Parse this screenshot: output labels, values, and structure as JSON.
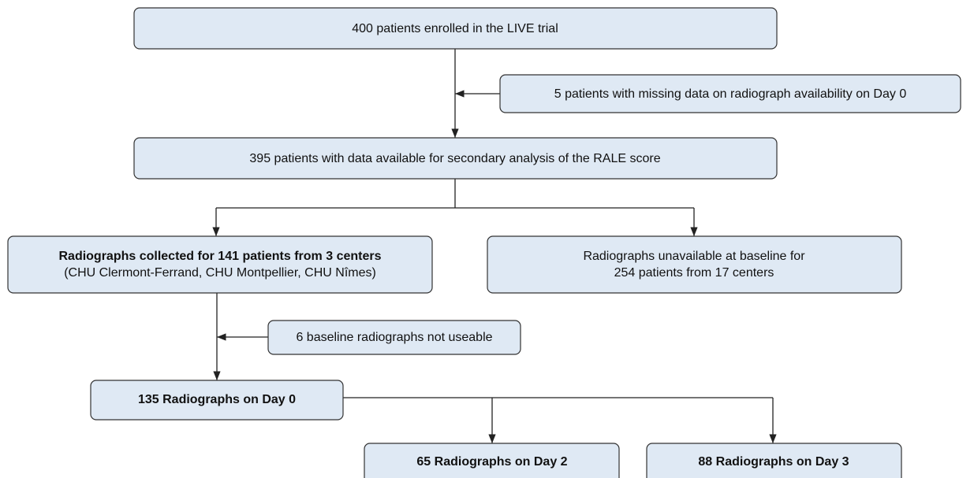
{
  "nodes": [
    {
      "lines": [
        "400 patients enrolled in the LIVE trial"
      ]
    },
    {
      "lines": [
        "5 patients with missing data on radiograph availability on Day 0"
      ]
    },
    {
      "lines": [
        "395 patients with data available for secondary analysis of the RALE score"
      ]
    },
    {
      "lines": [
        "Radiographs collected for 141 patients from 3 centers",
        "(CHU Clermont-Ferrand, CHU Montpellier, CHU Nîmes)"
      ]
    },
    {
      "lines": [
        "Radiographs unavailable at baseline for",
        "254 patients from 17 centers"
      ]
    },
    {
      "lines": [
        "6 baseline radiographs not useable"
      ]
    },
    {
      "lines": [
        "135 Radiographs on Day 0"
      ]
    },
    {
      "lines": [
        "65 Radiographs on Day 2"
      ]
    },
    {
      "lines": [
        "88 Radiographs on Day 3"
      ]
    }
  ]
}
